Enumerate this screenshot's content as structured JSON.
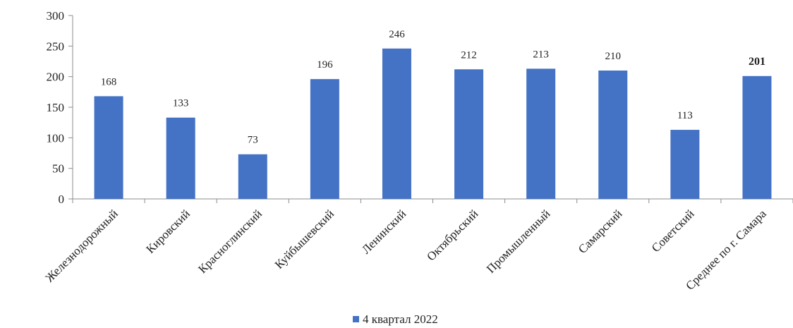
{
  "chart_data": {
    "type": "bar",
    "categories": [
      "Железнодорожный",
      "Кировский",
      "Красноглинский",
      "Куйбышевский",
      "Ленинский",
      "Октябрьский",
      "Промышленный",
      "Самарский",
      "Советский",
      "Среднее по г. Самара"
    ],
    "series": [
      {
        "name": "4 квартал 2022",
        "values": [
          168,
          133,
          73,
          196,
          246,
          212,
          213,
          210,
          113,
          201
        ],
        "color": "#4472C4"
      }
    ],
    "bold_label_categories": [
      "Среднее по г. Самара"
    ],
    "ylim": [
      0,
      300
    ],
    "yticks": [
      0,
      50,
      100,
      150,
      200,
      250,
      300
    ],
    "grid": false,
    "legend_position": "bottom-center"
  }
}
